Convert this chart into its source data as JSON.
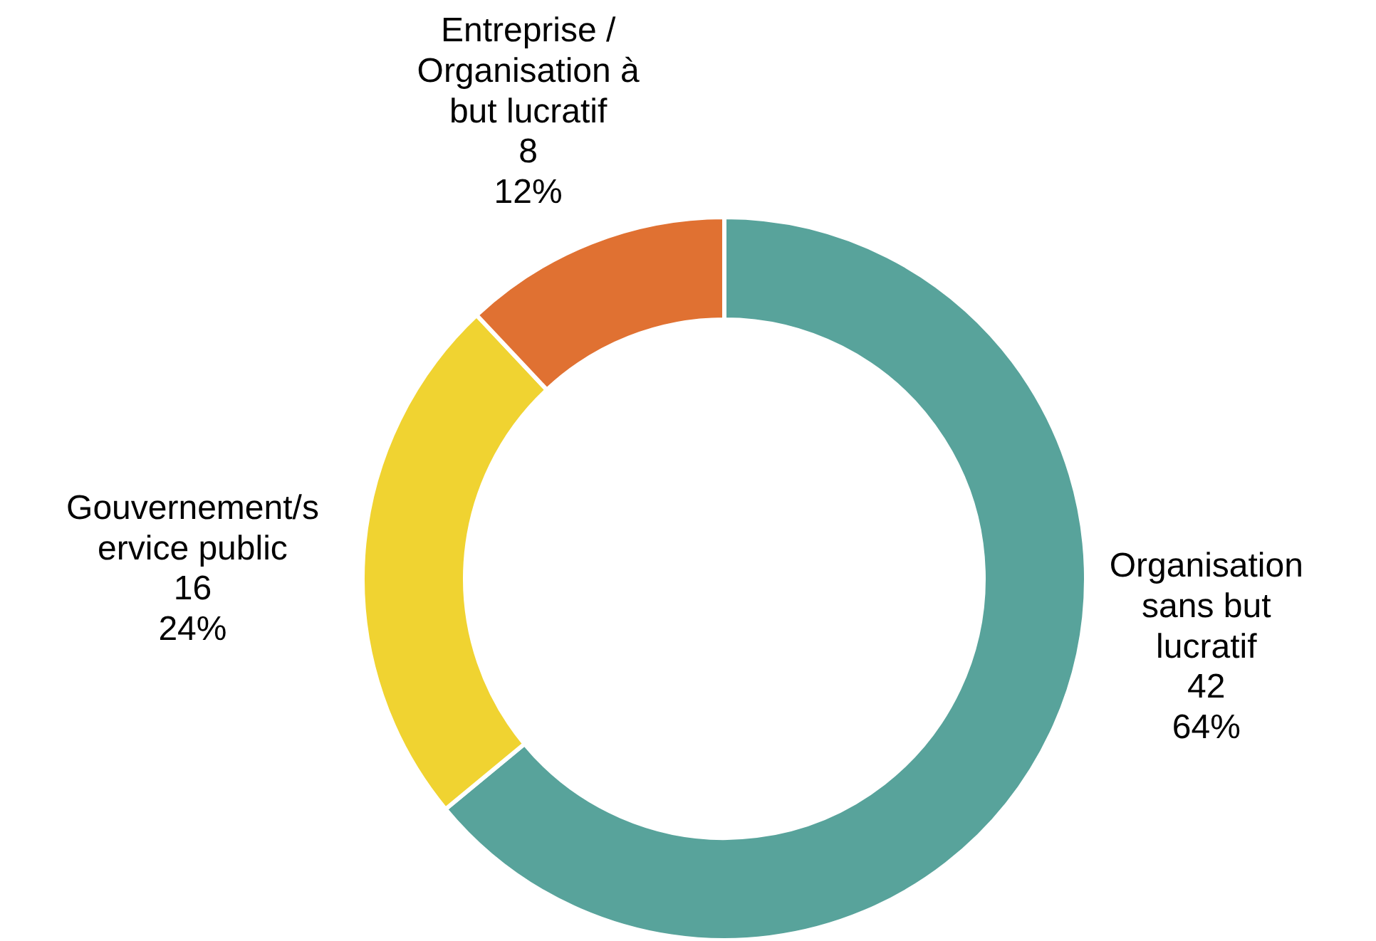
{
  "chart_data": {
    "type": "donut",
    "categories": [
      "Organisation sans but lucratif",
      "Gouvernement/service public",
      "Entreprise / Organisation à but lucratif"
    ],
    "values": [
      64,
      24,
      12
    ],
    "colors": [
      "#58a39b",
      "#f0d331",
      "#e07132"
    ],
    "value_labels": [
      "42\n64%",
      "16\n24%",
      "8\n12%"
    ]
  }
}
